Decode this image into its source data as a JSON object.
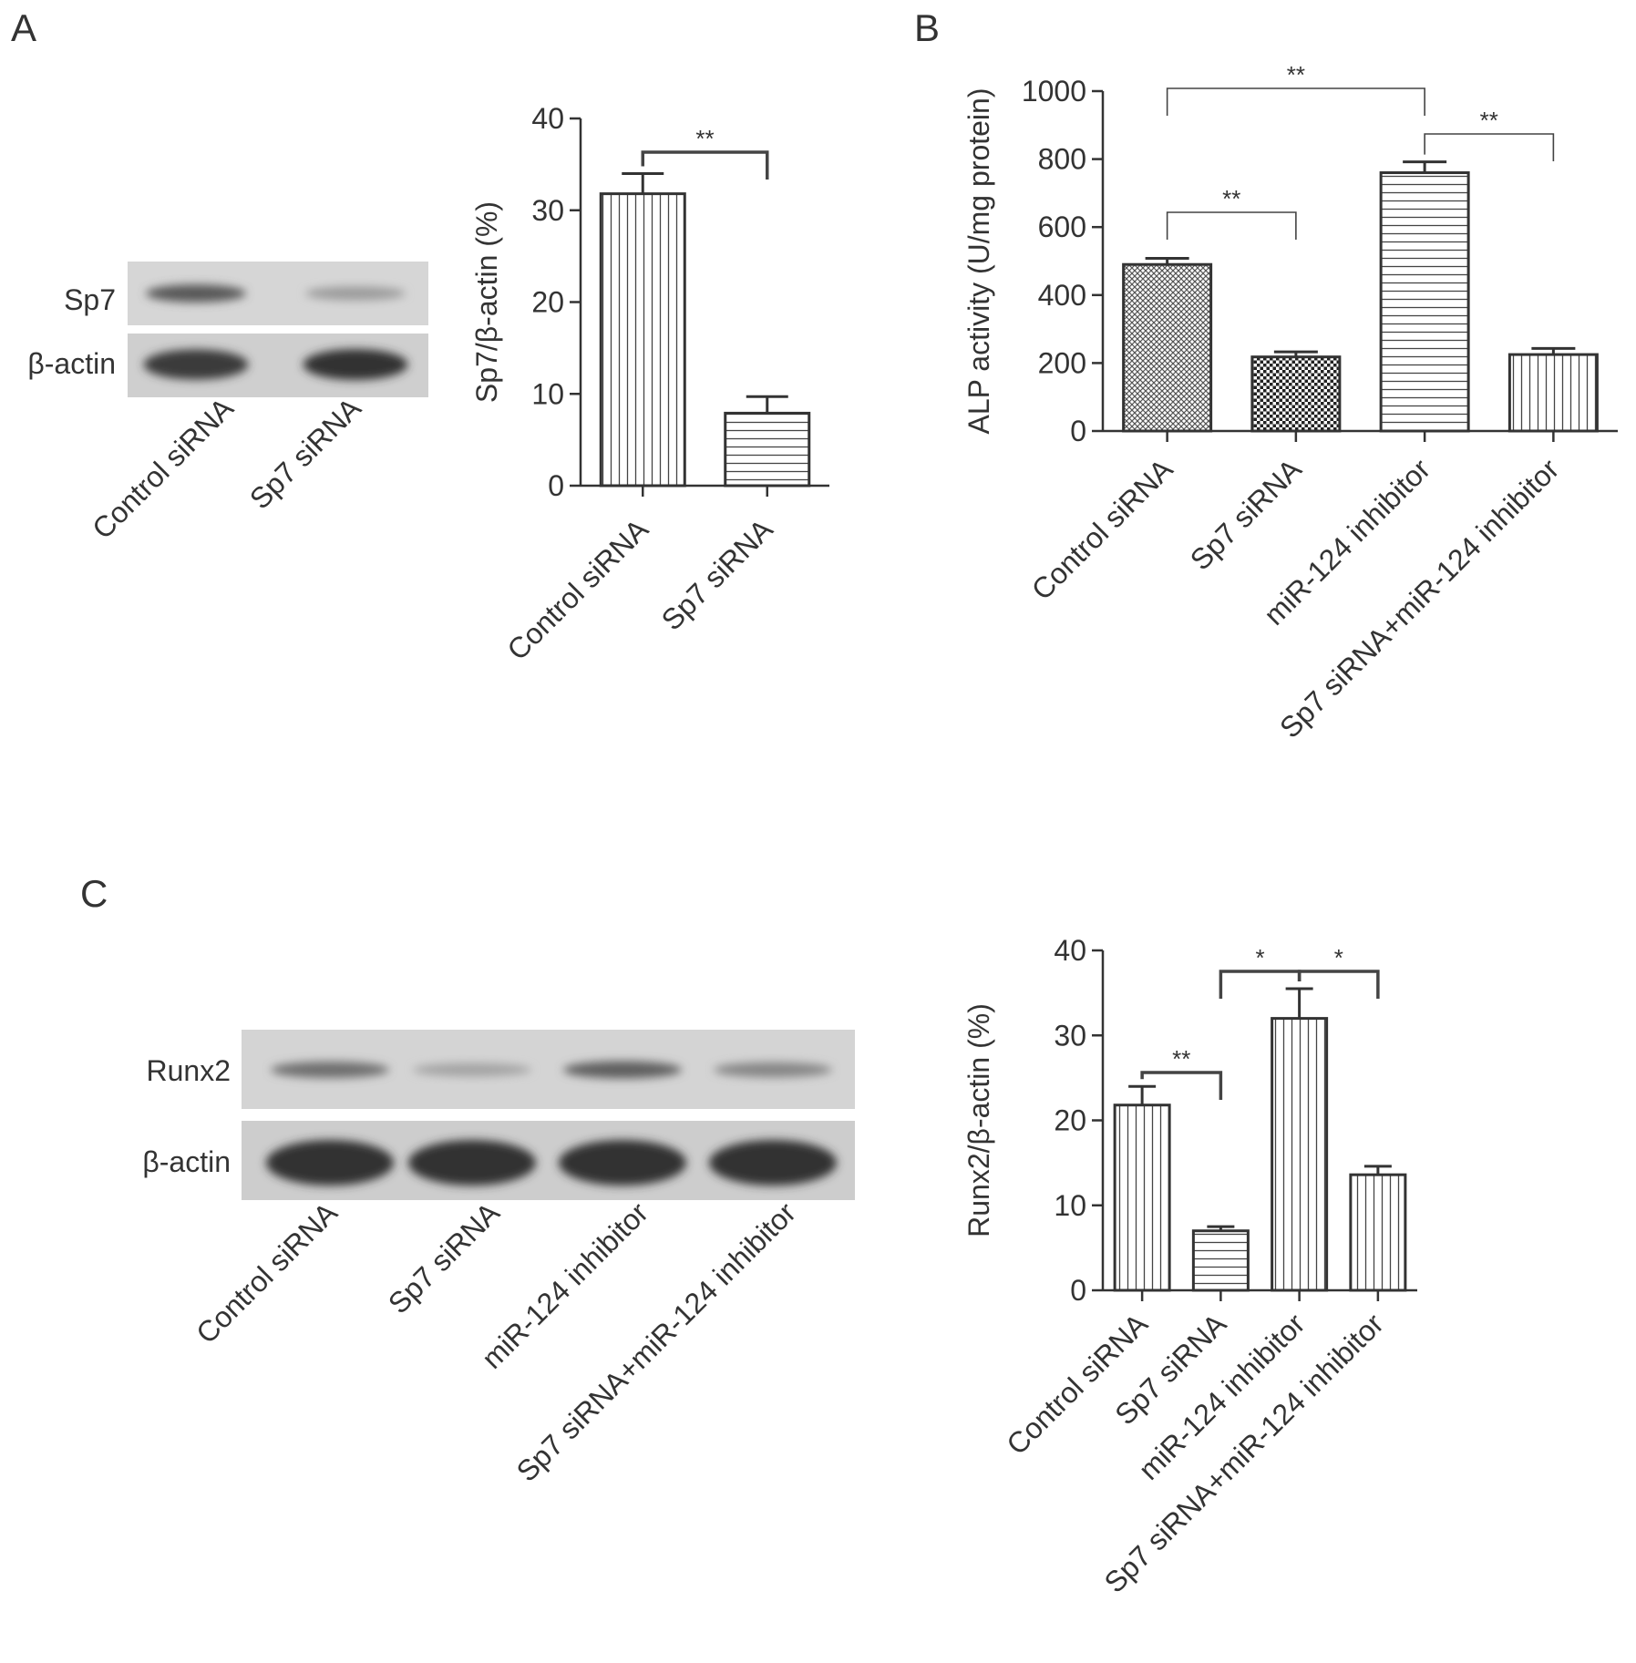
{
  "panels": {
    "a": {
      "letter": "A"
    },
    "b": {
      "letter": "B"
    },
    "c": {
      "letter": "C"
    }
  },
  "blot_a": {
    "rows": [
      "Sp7",
      "β-actin"
    ],
    "lanes": [
      "Control siRNA",
      "Sp7 siRNA"
    ],
    "band_intensity": {
      "Sp7": [
        0.75,
        0.3
      ],
      "β-actin": [
        0.95,
        1.0
      ]
    }
  },
  "blot_c": {
    "rows": [
      "Runx2",
      "β-actin"
    ],
    "lanes": [
      "Control siRNA",
      "Sp7 siRNA",
      "miR-124 inhibitor",
      "Sp7 siRNA+miR-124 inhibitor"
    ],
    "band_intensity": {
      "Runx2": [
        0.6,
        0.25,
        0.7,
        0.45
      ],
      "β-actin": [
        1.0,
        1.0,
        1.0,
        1.0
      ]
    }
  },
  "chart_data": [
    {
      "id": "A",
      "type": "bar",
      "categories": [
        "Control siRNA",
        "Sp7 siRNA"
      ],
      "values": [
        31.8,
        7.9
      ],
      "errors": [
        2.2,
        1.8
      ],
      "patterns": [
        "vertical-lines",
        "horizontal-lines"
      ],
      "ylabel": "Sp7/β-actin (%)",
      "ylim": [
        0,
        40
      ],
      "yticks": [
        0,
        10,
        20,
        30,
        40
      ],
      "significance": [
        {
          "from": 0,
          "to": 1,
          "label": "**"
        }
      ],
      "grid": false
    },
    {
      "id": "B",
      "type": "bar",
      "categories": [
        "Control siRNA",
        "Sp7 siRNA",
        "miR-124 inhibitor",
        "Sp7 siRNA+miR-124 inhibitor"
      ],
      "values": [
        490,
        218,
        760,
        225
      ],
      "errors": [
        18,
        15,
        32,
        18
      ],
      "patterns": [
        "crosshatch-fine",
        "dots-dense",
        "horizontal-lines",
        "vertical-lines"
      ],
      "ylabel": "ALP activity (U/mg protein)",
      "ylim": [
        0,
        1000
      ],
      "yticks": [
        0,
        200,
        400,
        600,
        800,
        1000
      ],
      "significance": [
        {
          "from": 0,
          "to": 1,
          "label": "**"
        },
        {
          "from": 0,
          "to": 2,
          "label": "**"
        },
        {
          "from": 2,
          "to": 3,
          "label": "**"
        }
      ],
      "grid": false
    },
    {
      "id": "C",
      "type": "bar",
      "categories": [
        "Control siRNA",
        "Sp7 siRNA",
        "miR-124 inhibitor",
        "Sp7 siRNA+miR-124 inhibitor"
      ],
      "values": [
        21.8,
        7.0,
        32.0,
        13.6
      ],
      "errors": [
        2.2,
        0.5,
        3.5,
        1.0
      ],
      "patterns": [
        "vertical-lines",
        "horizontal-lines",
        "vertical-lines",
        "vertical-lines"
      ],
      "ylabel": "Runx2/β-actin (%)",
      "ylim": [
        0,
        40
      ],
      "yticks": [
        0,
        10,
        20,
        30,
        40
      ],
      "significance": [
        {
          "from": 0,
          "to": 1,
          "label": "**"
        },
        {
          "from": 1,
          "to": 2,
          "label": "*"
        },
        {
          "from": 2,
          "to": 3,
          "label": "*"
        }
      ],
      "grid": false
    }
  ]
}
